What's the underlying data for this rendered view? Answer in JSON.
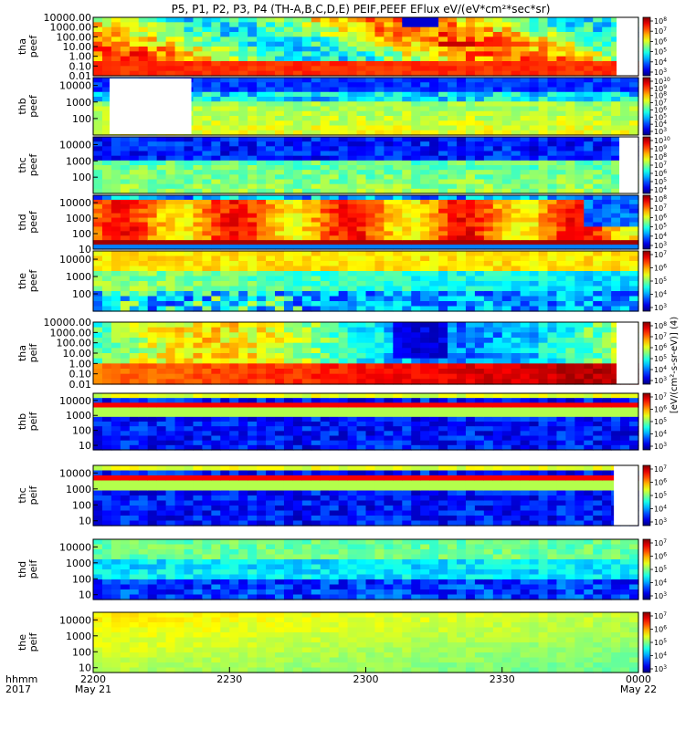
{
  "figure": {
    "title": "P5, P1, P2, P3, P4 (TH-A,B,C,D,E) PEIF,PEEF EFlux eV/(eV*cm²*sec*sr)",
    "colorbar_unit_label": "[eV/(cm²-s-sr-eV)] (4)",
    "x_axis": {
      "name_label": "hhmm",
      "year_label": "2017",
      "ticks": [
        {
          "time": "2200",
          "date": "May 21"
        },
        {
          "time": "2230",
          "date": ""
        },
        {
          "time": "2300",
          "date": ""
        },
        {
          "time": "2330",
          "date": ""
        },
        {
          "time": "0000",
          "date": "May 22"
        }
      ]
    }
  },
  "chart_data": [
    {
      "type": "heatmap",
      "probe": "tha",
      "quantity": "peef",
      "ylabel_line1": "tha",
      "ylabel_line2": "peef",
      "y_scale": "log",
      "ylim": [
        0.01,
        10000
      ],
      "yticks": [
        "10000.00",
        "1000.00",
        "100.00",
        "10.00",
        "1.00",
        "0.10",
        "0.01"
      ],
      "colorbar_ticks": [
        "10^8",
        "10^7",
        "10^6",
        "10^5",
        "10^4",
        "10^3"
      ],
      "gap_right_fraction": 0.04,
      "pattern": "tha-peef"
    },
    {
      "type": "heatmap",
      "probe": "thb",
      "quantity": "peef",
      "ylabel_line1": "thb",
      "ylabel_line2": "peef",
      "y_scale": "log",
      "ylim": [
        10,
        30000
      ],
      "yticks": [
        "10000",
        "1000",
        "100"
      ],
      "colorbar_ticks": [
        "10^10",
        "10^9",
        "10^8",
        "10^7",
        "10^6",
        "10^5",
        "10^4",
        "10^3"
      ],
      "gap_left_fraction": 0.15,
      "pattern": "thb-peef"
    },
    {
      "type": "heatmap",
      "probe": "thc",
      "quantity": "peef",
      "ylabel_line1": "thc",
      "ylabel_line2": "peef",
      "y_scale": "log",
      "ylim": [
        10,
        30000
      ],
      "yticks": [
        "10000",
        "1000",
        "100"
      ],
      "colorbar_ticks": [
        "10^10",
        "10^9",
        "10^8",
        "10^7",
        "10^6",
        "10^5",
        "10^4"
      ],
      "gap_right_fraction": 0.035,
      "pattern": "thc-peef"
    },
    {
      "type": "heatmap",
      "probe": "thd",
      "quantity": "peef",
      "ylabel_line1": "thd",
      "ylabel_line2": "peef",
      "y_scale": "log",
      "ylim": [
        10,
        30000
      ],
      "yticks": [
        "10000",
        "1000",
        "100",
        "10"
      ],
      "colorbar_ticks": [
        "10^8",
        "10^7",
        "10^6",
        "10^5",
        "10^4",
        "10^3"
      ],
      "pattern": "thd-peef"
    },
    {
      "type": "heatmap",
      "probe": "the",
      "quantity": "peef",
      "ylabel_line1": "the",
      "ylabel_line2": "peef",
      "y_scale": "log",
      "ylim": [
        10,
        30000
      ],
      "yticks": [
        "10000",
        "1000",
        "100"
      ],
      "colorbar_ticks": [
        "10^7",
        "10^6",
        "10^5",
        "10^4",
        "10^3"
      ],
      "pattern": "the-peef"
    },
    {
      "type": "heatmap",
      "probe": "tha",
      "quantity": "peif",
      "ylabel_line1": "tha",
      "ylabel_line2": "peif",
      "y_scale": "log",
      "ylim": [
        0.01,
        10000
      ],
      "yticks": [
        "10000.00",
        "1000.00",
        "100.00",
        "10.00",
        "1.00",
        "0.10",
        "0.01"
      ],
      "colorbar_ticks": [
        "10^8",
        "10^7",
        "10^6",
        "10^5",
        "10^4",
        "10^3"
      ],
      "gap_right_fraction": 0.04,
      "pattern": "tha-peif"
    },
    {
      "type": "heatmap",
      "probe": "thb",
      "quantity": "peif",
      "ylabel_line1": "thb",
      "ylabel_line2": "peif",
      "y_scale": "log",
      "ylim": [
        5,
        30000
      ],
      "yticks": [
        "10000",
        "1000",
        "100",
        "10"
      ],
      "colorbar_ticks": [
        "10^7",
        "10^6",
        "10^5",
        "10^4",
        "10^3"
      ],
      "pattern": "thb-peif"
    },
    {
      "type": "heatmap",
      "probe": "thc",
      "quantity": "peif",
      "ylabel_line1": "thc",
      "ylabel_line2": "peif",
      "y_scale": "log",
      "ylim": [
        5,
        30000
      ],
      "yticks": [
        "10000",
        "1000",
        "100",
        "10"
      ],
      "colorbar_ticks": [
        "10^7",
        "10^6",
        "10^5",
        "10^4",
        "10^3"
      ],
      "gap_right_fraction": 0.045,
      "pattern": "thc-peif"
    },
    {
      "type": "heatmap",
      "probe": "thd",
      "quantity": "peif",
      "ylabel_line1": "thd",
      "ylabel_line2": "peif",
      "y_scale": "log",
      "ylim": [
        5,
        30000
      ],
      "yticks": [
        "10000",
        "1000",
        "100",
        "10"
      ],
      "colorbar_ticks": [
        "10^7",
        "10^6",
        "10^5",
        "10^4",
        "10^3"
      ],
      "pattern": "thd-peif"
    },
    {
      "type": "heatmap",
      "probe": "the",
      "quantity": "peif",
      "ylabel_line1": "the",
      "ylabel_line2": "peif",
      "y_scale": "log",
      "ylim": [
        5,
        30000
      ],
      "yticks": [
        "10000",
        "1000",
        "100",
        "10"
      ],
      "colorbar_ticks": [
        "10^7",
        "10^6",
        "10^5",
        "10^4",
        "10^3"
      ],
      "pattern": "the-peif"
    }
  ]
}
